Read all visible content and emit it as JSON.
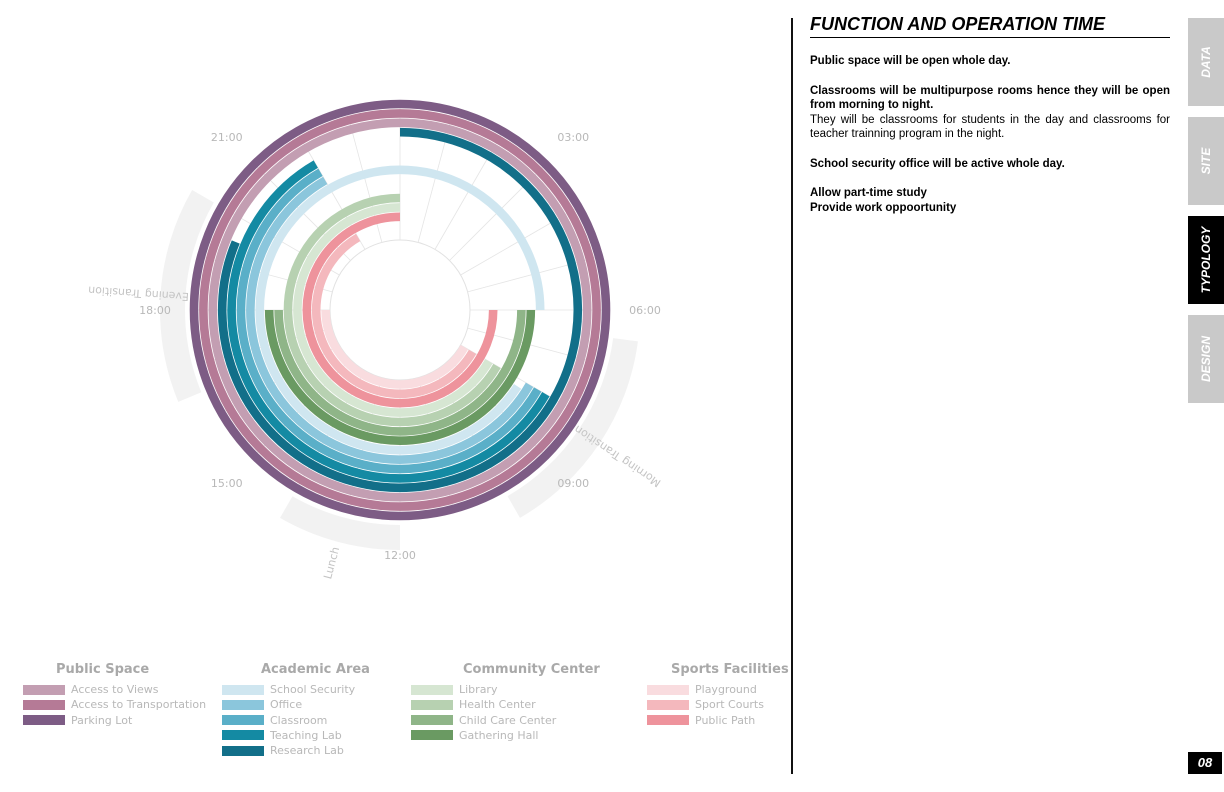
{
  "diagram": {
    "title": "",
    "hours_per_rotation": 24,
    "time_labels": [
      {
        "text": "03:00",
        "hour": 3
      },
      {
        "text": "06:00",
        "hour": 6
      },
      {
        "text": "09:00",
        "hour": 9
      },
      {
        "text": "12:00",
        "hour": 12
      },
      {
        "text": "15:00",
        "hour": 15
      },
      {
        "text": "18:00",
        "hour": 18
      },
      {
        "text": "21:00",
        "hour": 21
      }
    ],
    "periods": [
      {
        "label": "Morning Transition",
        "start_hour": 6.5,
        "end_hour": 10
      },
      {
        "label": "Lunch",
        "start_hour": 12,
        "end_hour": 14
      },
      {
        "label": "Evening Transition",
        "start_hour": 16.5,
        "end_hour": 20
      }
    ],
    "rings": [
      {
        "name": "Parking Lot",
        "color": "#7d5c85",
        "start_hour": 0,
        "end_hour": 24
      },
      {
        "name": "Access to Transportation",
        "color": "#b57a96",
        "start_hour": 0,
        "end_hour": 24
      },
      {
        "name": "Access to Views",
        "color": "#c39eb2",
        "start_hour": 0,
        "end_hour": 24
      },
      {
        "name": "Research Lab",
        "color": "#126f89",
        "start_hour": 0,
        "end_hour": 24,
        "gap_start_hour": 19.5,
        "gap_end_hour": 24
      },
      {
        "name": "Teaching Lab",
        "color": "#148aa3",
        "start_hour": 8,
        "end_hour": 22
      },
      {
        "name": "Classroom",
        "color": "#5aafc8",
        "start_hour": 8,
        "end_hour": 22
      },
      {
        "name": "Office",
        "color": "#8bc6dc",
        "start_hour": 8,
        "end_hour": 22
      },
      {
        "name": "School Security",
        "color": "#cfe6f0",
        "start_hour": 0,
        "end_hour": 24,
        "gap_start_hour": 6,
        "gap_end_hour": 8.2
      },
      {
        "name": "Gathering Hall",
        "color": "#6a9a62",
        "start_hour": 6,
        "end_hour": 18
      },
      {
        "name": "Child Care Center",
        "color": "#8fb588",
        "start_hour": 6,
        "end_hour": 18
      },
      {
        "name": "Health Center",
        "color": "#b7d1b1",
        "start_hour": 8,
        "end_hour": 24
      },
      {
        "name": "Library",
        "color": "#d6e6d2",
        "start_hour": 8,
        "end_hour": 24
      },
      {
        "name": "Public Path",
        "color": "#ee939c",
        "start_hour": 6,
        "end_hour": 24
      },
      {
        "name": "Sport Courts",
        "color": "#f4b8bd",
        "start_hour": 8,
        "end_hour": 22
      },
      {
        "name": "Playground",
        "color": "#f9dcdf",
        "start_hour": 8,
        "end_hour": 18
      }
    ]
  },
  "legend": [
    {
      "title": "Public Space",
      "items": [
        {
          "label": "Access to Views",
          "color": "#c39eb2"
        },
        {
          "label": "Access to Transportation",
          "color": "#b57a96"
        },
        {
          "label": "Parking Lot",
          "color": "#7d5c85"
        }
      ]
    },
    {
      "title": "Academic Area",
      "items": [
        {
          "label": "School Security",
          "color": "#cfe6f0"
        },
        {
          "label": "Office",
          "color": "#8bc6dc"
        },
        {
          "label": "Classroom",
          "color": "#5aafc8"
        },
        {
          "label": "Teaching Lab",
          "color": "#148aa3"
        },
        {
          "label": "Research Lab",
          "color": "#126f89"
        }
      ]
    },
    {
      "title": "Community Center",
      "items": [
        {
          "label": "Library",
          "color": "#d6e6d2"
        },
        {
          "label": "Health Center",
          "color": "#b7d1b1"
        },
        {
          "label": "Child Care Center",
          "color": "#8fb588"
        },
        {
          "label": "Gathering Hall",
          "color": "#6a9a62"
        }
      ]
    },
    {
      "title": "Sports Facilities",
      "items": [
        {
          "label": "Playground",
          "color": "#f9dcdf"
        },
        {
          "label": "Sport Courts",
          "color": "#f4b8bd"
        },
        {
          "label": "Public Path",
          "color": "#ee939c"
        }
      ]
    }
  ],
  "panel": {
    "title": "FUNCTION AND OPERATION TIME",
    "p1": "Public space will be open whole day.",
    "p2_bold": "Classrooms will be multipurpose rooms hence they will be open from morning  to night.",
    "p2_normal": "They will be classrooms for students in the day and classrooms for teacher trainning program in the night.",
    "p3": "School security office will be active whole day.",
    "p4_line1": "Allow part-time study",
    "p4_line2": "Provide work oppoortunity"
  },
  "tabs": [
    {
      "label": "DATA",
      "active": false
    },
    {
      "label": "SITE",
      "active": false
    },
    {
      "label": "TYPOLOGY",
      "active": true
    },
    {
      "label": "DESIGN",
      "active": false
    }
  ],
  "page_number": "08"
}
